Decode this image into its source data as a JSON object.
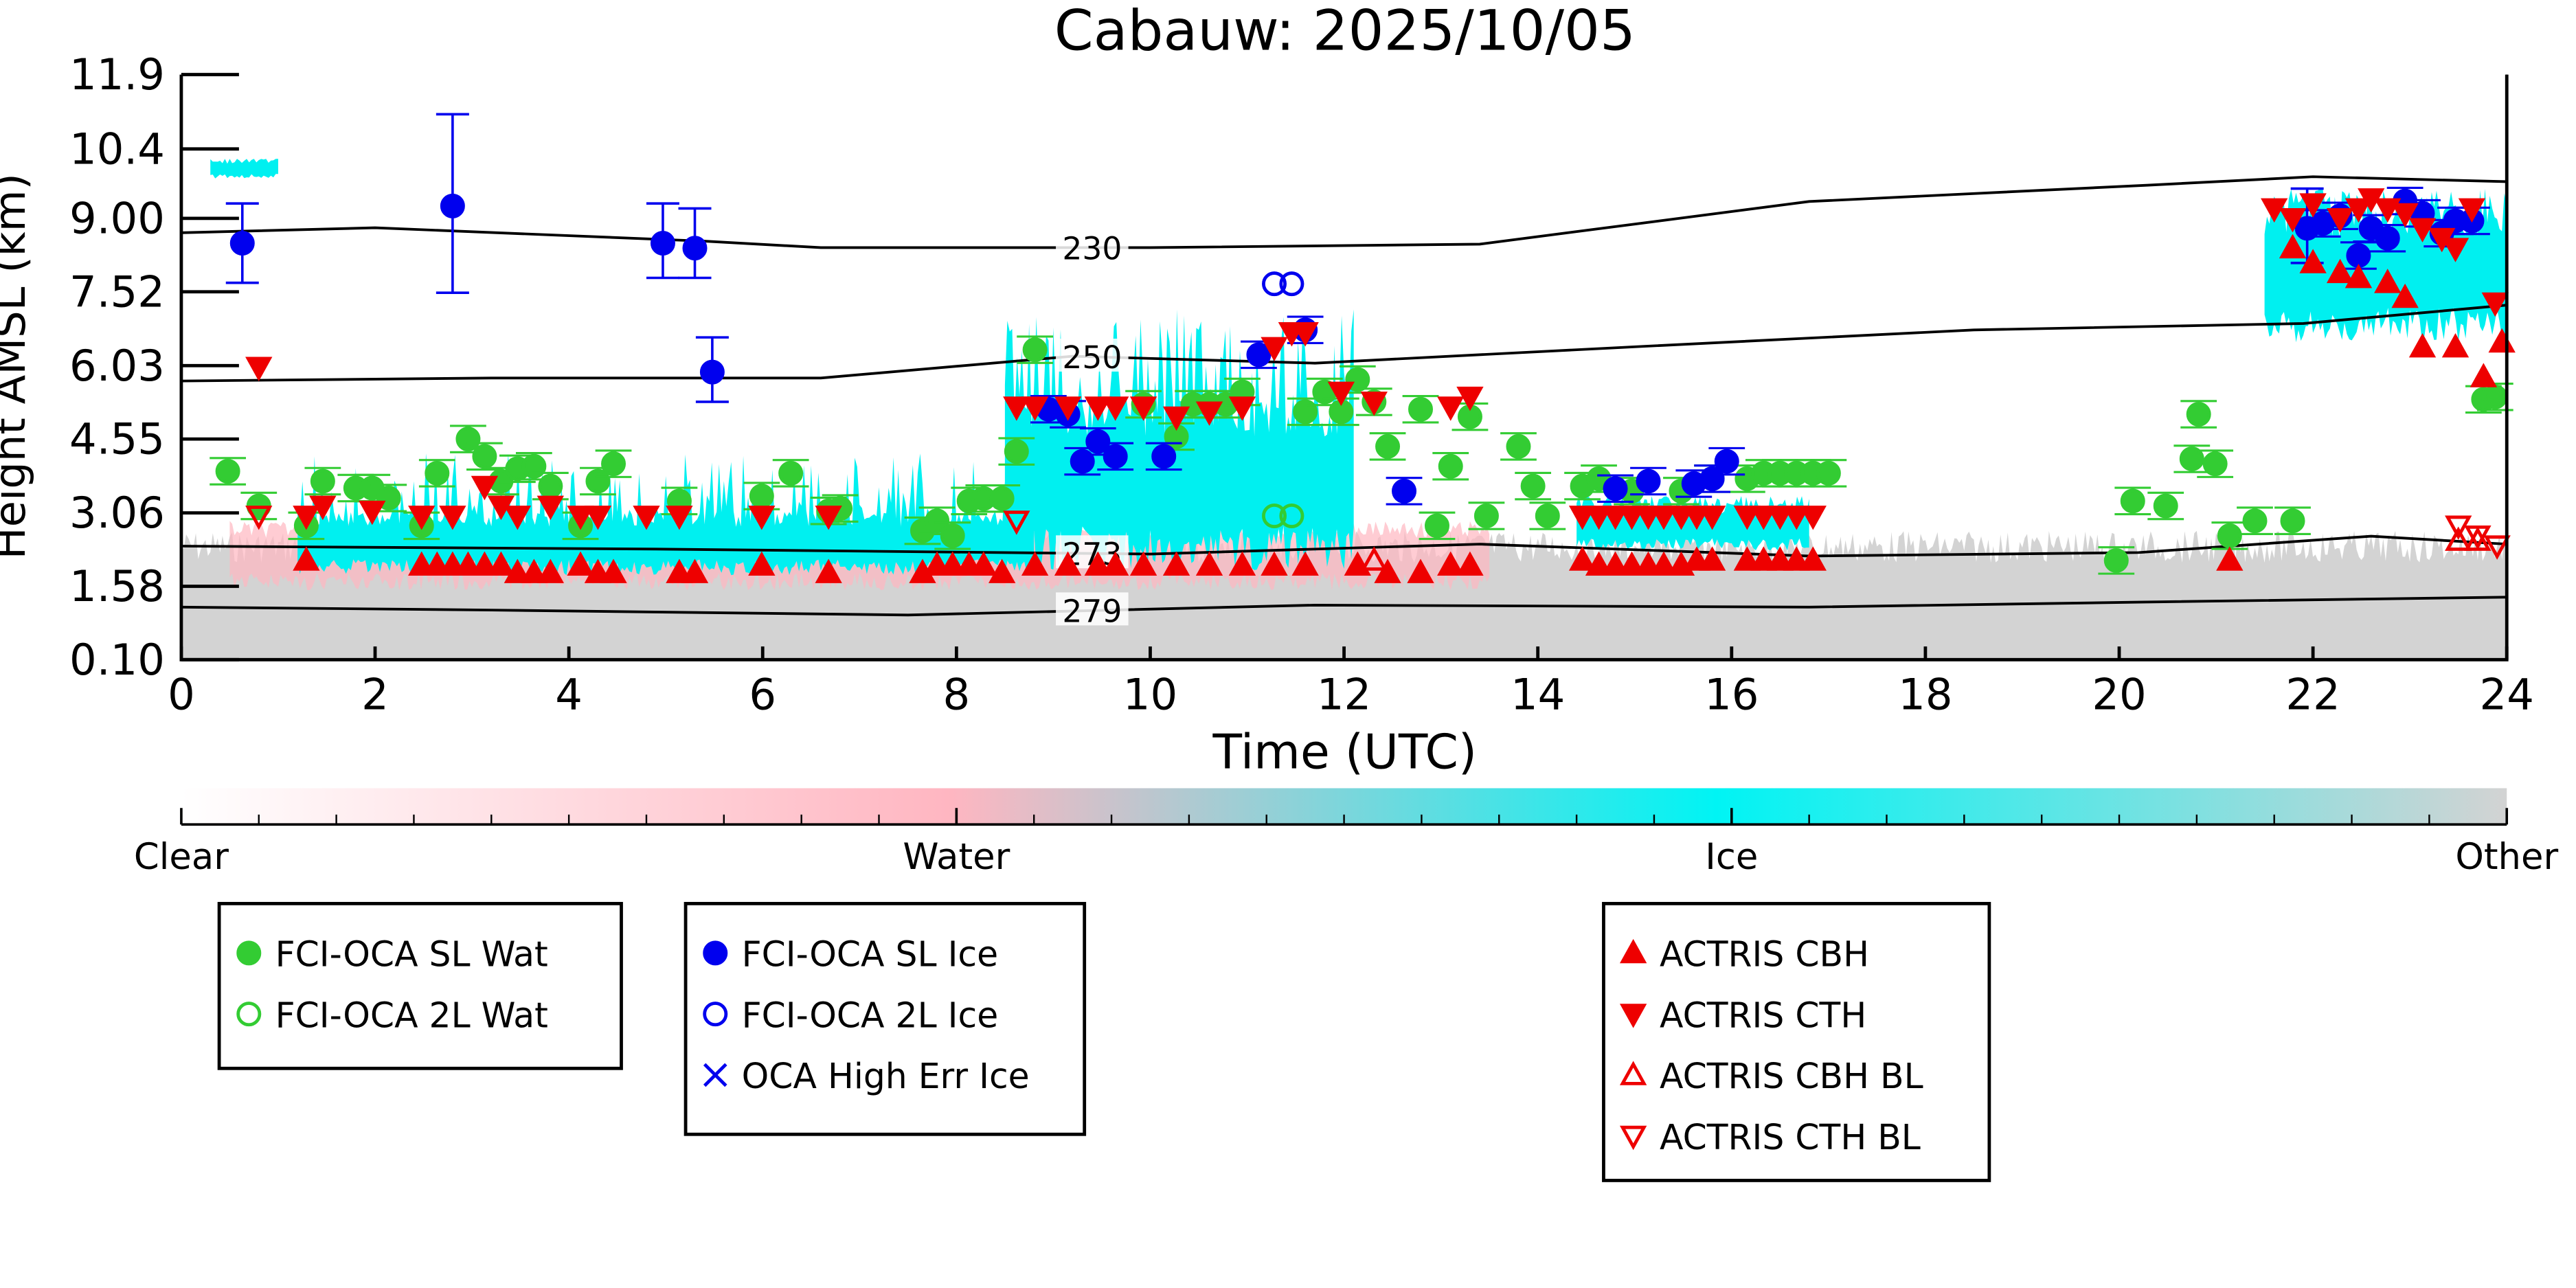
{
  "chart_data": {
    "type": "scatter",
    "title": "Cabauw: 2025/10/05",
    "xlabel": "Time (UTC)",
    "ylabel": "Height AMSL (km)",
    "xlim": [
      0,
      24
    ],
    "ylim": [
      0.1,
      11.9
    ],
    "xticks": [
      "0",
      "2",
      "4",
      "6",
      "8",
      "10",
      "12",
      "14",
      "16",
      "18",
      "20",
      "22",
      "24"
    ],
    "yticks": [
      "0.10",
      "1.58",
      "3.06",
      "4.55",
      "6.03",
      "7.52",
      "9.00",
      "10.4",
      "11.9"
    ],
    "ytick_values": [
      0.1,
      1.58,
      3.06,
      4.55,
      6.03,
      7.52,
      9.0,
      10.4,
      11.9
    ],
    "colorbar": {
      "labels": [
        "Clear",
        "Water",
        "Ice",
        "Other"
      ],
      "colors": [
        "#ffffff",
        "#ffb6c1",
        "#00ffff",
        "#d3d3d3"
      ]
    },
    "mask_regions": [
      {
        "class": "Other",
        "t": [
          0,
          24
        ],
        "h": [
          0.1,
          2.7
        ]
      },
      {
        "class": "Water",
        "t": [
          0.5,
          13.5
        ],
        "h": [
          1.5,
          2.9
        ]
      },
      {
        "class": "Ice",
        "t": [
          1.2,
          8.8
        ],
        "h": [
          1.8,
          3.1
        ],
        "peak": 4.3
      },
      {
        "class": "Ice",
        "t": [
          8.5,
          12.1
        ],
        "h": [
          1.9,
          5.5
        ],
        "peak": 7.2
      },
      {
        "class": "Ice",
        "t": [
          14.4,
          16.8
        ],
        "h": [
          2.3,
          3.3
        ],
        "peak": 3.4
      },
      {
        "class": "Ice",
        "t": [
          21.5,
          24
        ],
        "h": [
          6.5,
          9.3
        ],
        "peak": 9.6
      },
      {
        "class": "Ice",
        "t": [
          0.3,
          1.0
        ],
        "h": [
          9.8,
          10.2
        ],
        "peak": 10.2
      }
    ],
    "contours": [
      {
        "label": "230",
        "t": [
          0,
          2,
          5.4,
          6.6,
          10,
          13.4,
          16.8,
          20.3,
          22,
          24
        ],
        "h": [
          8.71,
          8.81,
          8.54,
          8.41,
          8.41,
          8.48,
          9.34,
          9.67,
          9.84,
          9.74
        ]
      },
      {
        "label": "250",
        "t": [
          0,
          3.2,
          6.6,
          9.2,
          11.7,
          15.1,
          18.5,
          21.9,
          24
        ],
        "h": [
          5.72,
          5.78,
          5.78,
          6.22,
          6.08,
          6.42,
          6.75,
          6.88,
          7.25
        ]
      },
      {
        "label": "273",
        "t": [
          0,
          4.9,
          10,
          13.4,
          16.8,
          20.2,
          22.6,
          24
        ],
        "h": [
          2.39,
          2.33,
          2.23,
          2.43,
          2.19,
          2.26,
          2.59,
          2.43
        ]
      },
      {
        "label": "279",
        "t": [
          0,
          3.2,
          7.5,
          11.7,
          16.8,
          20.2,
          24
        ],
        "h": [
          1.16,
          1.1,
          1.0,
          1.2,
          1.16,
          1.26,
          1.36
        ]
      }
    ],
    "contour_label_time": 9.4,
    "series": [
      {
        "name": "FCI-OCA SL Wat",
        "marker": "circle",
        "filled": true,
        "color": "#33cc33",
        "t": [
          0.48,
          0.8,
          1.29,
          1.46,
          1.8,
          1.97,
          2.14,
          2.48,
          2.64,
          2.96,
          3.13,
          3.3,
          3.47,
          3.64,
          3.81,
          4.12,
          4.3,
          4.46,
          5.14,
          5.99,
          6.29,
          6.68,
          6.8,
          7.65,
          7.8,
          7.96,
          8.13,
          8.28,
          8.47,
          8.62,
          8.81,
          9.93,
          10.27,
          10.44,
          10.61,
          10.78,
          10.95,
          11.6,
          11.8,
          11.97,
          12.14,
          12.31,
          12.45,
          12.79,
          12.96,
          13.1,
          13.3,
          13.47,
          13.8,
          13.95,
          14.1,
          14.46,
          14.63,
          14.97,
          15.48,
          15.8,
          16.16,
          16.33,
          16.5,
          16.67,
          16.84,
          17.0,
          19.97,
          20.14,
          20.48,
          20.75,
          20.82,
          20.99,
          21.14,
          21.4,
          21.79,
          23.76,
          23.88
        ],
        "h": [
          3.9,
          3.2,
          2.8,
          3.7,
          3.56,
          3.56,
          3.36,
          2.8,
          3.86,
          4.55,
          4.2,
          3.7,
          3.95,
          4.0,
          3.6,
          2.8,
          3.7,
          4.05,
          3.3,
          3.4,
          3.86,
          3.1,
          3.15,
          2.7,
          2.9,
          2.6,
          3.3,
          3.35,
          3.35,
          4.3,
          6.35,
          5.25,
          4.6,
          5.25,
          5.25,
          5.25,
          5.5,
          5.1,
          5.5,
          5.1,
          5.75,
          5.3,
          4.4,
          5.15,
          2.8,
          4.0,
          5.0,
          3.0,
          4.4,
          3.6,
          3.0,
          3.6,
          3.75,
          3.5,
          3.5,
          3.75,
          3.75,
          3.86,
          3.86,
          3.86,
          3.86,
          3.86,
          2.1,
          3.3,
          3.2,
          4.15,
          5.05,
          4.05,
          2.6,
          2.9,
          2.9,
          5.35,
          5.4
        ]
      },
      {
        "name": "FCI-OCA 2L Wat",
        "marker": "circle",
        "filled": false,
        "color": "#33cc33",
        "t": [
          11.28,
          11.46
        ],
        "h": [
          3.0,
          3.0
        ]
      },
      {
        "name": "FCI-OCA SL Ice",
        "marker": "circle",
        "filled": true,
        "color": "#0000ee",
        "t": [
          0.63,
          2.8,
          4.97,
          5.3,
          5.48,
          8.95,
          9.15,
          9.3,
          9.46,
          9.64,
          10.14,
          11.12,
          11.6,
          12.62,
          14.8,
          15.14,
          15.61,
          15.8,
          15.95,
          21.94,
          22.1,
          22.28,
          22.47,
          22.6,
          22.77,
          22.95,
          23.13,
          23.33,
          23.47,
          23.64
        ],
        "h": [
          8.5,
          9.25,
          8.5,
          8.4,
          5.9,
          5.15,
          5.05,
          4.1,
          4.5,
          4.2,
          4.2,
          6.25,
          6.75,
          3.5,
          3.55,
          3.7,
          3.65,
          3.75,
          4.1,
          8.8,
          8.9,
          9.05,
          8.25,
          8.8,
          8.6,
          9.35,
          9.1,
          8.7,
          8.95,
          8.95
        ],
        "err_low": [
          7.7,
          7.5,
          7.8,
          7.8,
          5.3,
          null,
          null,
          null,
          null,
          null,
          null,
          null,
          null,
          null,
          null,
          null,
          null,
          null,
          null,
          8.1,
          null,
          null,
          null,
          null,
          null,
          null,
          null,
          null,
          null,
          null
        ],
        "err_high": [
          9.3,
          11.1,
          9.3,
          9.2,
          6.6,
          null,
          null,
          null,
          null,
          null,
          null,
          null,
          null,
          null,
          null,
          null,
          null,
          null,
          null,
          9.6,
          null,
          null,
          null,
          null,
          null,
          null,
          null,
          null,
          null,
          null
        ]
      },
      {
        "name": "FCI-OCA 2L Ice",
        "marker": "circle",
        "filled": false,
        "color": "#0000ee",
        "t": [
          11.28,
          11.46
        ],
        "h": [
          7.68,
          7.68
        ]
      },
      {
        "name": "OCA High Err Ice",
        "marker": "x",
        "filled": false,
        "color": "#0000ee",
        "t": [],
        "h": []
      },
      {
        "name": "ACTRIS CBH",
        "marker": "triangle-up",
        "filled": true,
        "color": "#ee0000",
        "t": [
          1.29,
          2.48,
          2.64,
          2.8,
          2.96,
          3.13,
          3.3,
          3.47,
          3.64,
          3.81,
          4.12,
          4.3,
          4.46,
          5.14,
          5.3,
          5.99,
          6.68,
          7.65,
          7.8,
          7.96,
          8.13,
          8.28,
          8.47,
          8.81,
          9.15,
          9.46,
          9.64,
          9.93,
          10.27,
          10.61,
          10.95,
          11.28,
          11.6,
          12.14,
          12.45,
          12.79,
          13.1,
          13.3,
          14.46,
          14.63,
          14.8,
          14.97,
          15.14,
          15.3,
          15.48,
          15.64,
          15.8,
          16.16,
          16.33,
          16.5,
          16.67,
          16.84,
          21.14,
          21.79,
          22.0,
          22.28,
          22.47,
          22.77,
          22.95,
          23.13,
          23.47,
          23.76,
          23.95
        ],
        "h": [
          2.1,
          2.0,
          2.0,
          2.0,
          2.0,
          2.0,
          2.0,
          1.85,
          1.85,
          1.85,
          2.0,
          1.85,
          1.85,
          1.85,
          1.85,
          2.0,
          1.85,
          1.85,
          2.0,
          2.0,
          2.0,
          2.0,
          1.85,
          2.0,
          2.0,
          2.0,
          2.0,
          2.0,
          2.0,
          2.0,
          2.0,
          2.0,
          2.0,
          2.0,
          1.85,
          1.85,
          2.0,
          2.0,
          2.1,
          2.0,
          2.0,
          2.0,
          2.0,
          2.0,
          2.0,
          2.1,
          2.1,
          2.1,
          2.1,
          2.1,
          2.1,
          2.1,
          2.1,
          8.4,
          8.1,
          7.9,
          7.8,
          7.7,
          7.4,
          6.4,
          6.4,
          5.8,
          6.5
        ]
      },
      {
        "name": "ACTRIS CTH",
        "marker": "triangle-down",
        "filled": true,
        "color": "#ee0000",
        "t": [
          0.8,
          1.29,
          1.46,
          1.97,
          2.48,
          2.8,
          3.13,
          3.3,
          3.47,
          3.81,
          4.12,
          4.3,
          4.8,
          5.14,
          5.99,
          6.68,
          8.62,
          8.81,
          9.15,
          9.46,
          9.64,
          9.93,
          10.27,
          10.61,
          10.95,
          11.28,
          11.46,
          11.6,
          11.97,
          12.31,
          13.1,
          13.3,
          14.46,
          14.63,
          14.8,
          14.97,
          15.14,
          15.3,
          15.48,
          15.64,
          15.8,
          16.16,
          16.33,
          16.5,
          16.67,
          16.84,
          21.6,
          21.79,
          22.0,
          22.28,
          22.47,
          22.6,
          22.77,
          22.95,
          23.13,
          23.33,
          23.47,
          23.64,
          23.88
        ],
        "h": [
          6.0,
          3.0,
          3.2,
          3.1,
          3.0,
          3.0,
          3.6,
          3.2,
          3.0,
          3.2,
          3.0,
          3.0,
          3.0,
          3.0,
          3.0,
          3.0,
          5.2,
          5.2,
          5.2,
          5.2,
          5.2,
          5.2,
          5.0,
          5.1,
          5.2,
          6.4,
          6.7,
          6.7,
          5.5,
          5.3,
          5.2,
          5.4,
          3.0,
          3.0,
          3.0,
          3.0,
          3.0,
          3.0,
          3.0,
          3.0,
          3.0,
          3.0,
          3.0,
          3.0,
          3.0,
          3.0,
          9.2,
          9.0,
          9.3,
          9.0,
          9.2,
          9.4,
          9.2,
          9.1,
          8.8,
          8.6,
          8.4,
          9.2,
          7.3
        ]
      },
      {
        "name": "ACTRIS CBH BL",
        "marker": "triangle-up",
        "filled": false,
        "color": "#ee0000",
        "t": [
          12.31,
          23.5,
          23.7
        ],
        "h": [
          2.1,
          2.5,
          2.5
        ]
      },
      {
        "name": "ACTRIS CTH BL",
        "marker": "triangle-down",
        "filled": false,
        "color": "#ee0000",
        "t": [
          0.8,
          8.62,
          23.5,
          23.7,
          23.9
        ],
        "h": [
          3.0,
          2.9,
          2.8,
          2.6,
          2.4
        ]
      }
    ],
    "legend_groups": [
      [
        "FCI-OCA SL Wat",
        "FCI-OCA 2L Wat"
      ],
      [
        "FCI-OCA SL Ice",
        "FCI-OCA 2L Ice",
        "OCA High Err Ice"
      ],
      [
        "ACTRIS CBH",
        "ACTRIS CTH",
        "ACTRIS CBH BL",
        "ACTRIS CTH BL"
      ]
    ],
    "legend_placement": "bottom"
  }
}
